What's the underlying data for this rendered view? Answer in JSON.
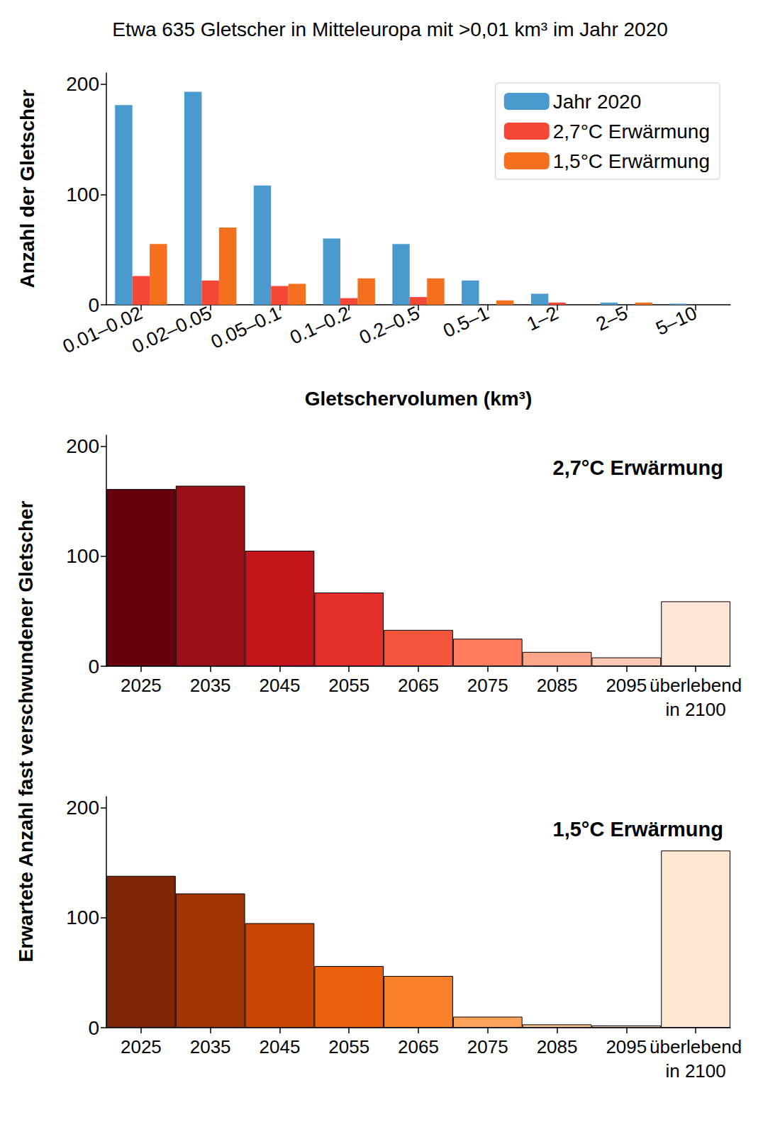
{
  "chart_data": [
    {
      "type": "bar",
      "title": "Etwa 635 Gletscher in Mitteleuropa mit >0,01 km³ im Jahr 2020",
      "xlabel": "Gletschervolumen (km³)",
      "ylabel": "Anzahl der Gletscher",
      "categories": [
        "0.01–0.02",
        "0.02–0.05",
        "0.05–0.1",
        "0.1–0.2",
        "0.2–0.5",
        "0.5–1",
        "1–2",
        "2–5",
        "5–10"
      ],
      "series": [
        {
          "name": "Jahr 2020",
          "color": "#4a9ace",
          "values": [
            181,
            193,
            108,
            60,
            55,
            22,
            10,
            2,
            1
          ]
        },
        {
          "name": "2,7°C Erwärmung",
          "color": "#f44736",
          "values": [
            26,
            22,
            17,
            6,
            7,
            0,
            2,
            0,
            0
          ]
        },
        {
          "name": "1,5°C Erwärmung",
          "color": "#f4701f",
          "values": [
            55,
            70,
            19,
            24,
            24,
            4,
            0,
            2,
            0
          ]
        }
      ],
      "ylim": [
        0,
        210
      ],
      "yticks": [
        0,
        100,
        200
      ],
      "grid": false,
      "legend": "upper right"
    },
    {
      "type": "bar",
      "annotation": "2,7°C Erwärmung",
      "ylabel": "Erwartete Anzahl fast verschwundener Gletscher",
      "categories": [
        "2025",
        "2035",
        "2045",
        "2055",
        "2065",
        "2075",
        "2085",
        "2095",
        "überlebend\nin 2100"
      ],
      "values": [
        161,
        164,
        105,
        67,
        33,
        25,
        13,
        8,
        59
      ],
      "colors": [
        "#67000d",
        "#9a0f18",
        "#c2161b",
        "#e32f27",
        "#f5553d",
        "#fb7d5d",
        "#fca689",
        "#fdc9b4",
        "#fee3d7"
      ],
      "ylim": [
        0,
        210
      ],
      "yticks": [
        0,
        100,
        200
      ],
      "grid": false
    },
    {
      "type": "bar",
      "annotation": "1,5°C Erwärmung",
      "categories": [
        "2025",
        "2035",
        "2045",
        "2055",
        "2065",
        "2075",
        "2085",
        "2095",
        "überlebend\nin 2100"
      ],
      "values": [
        138,
        122,
        95,
        56,
        47,
        10,
        3,
        2,
        161
      ],
      "colors": [
        "#7f2704",
        "#9f3303",
        "#cb4502",
        "#ea600d",
        "#f8822a",
        "#fda35c",
        "#fdc28c",
        "#fdd8b3",
        "#fee7d1"
      ],
      "ylim": [
        0,
        210
      ],
      "yticks": [
        0,
        100,
        200
      ],
      "grid": false
    }
  ]
}
